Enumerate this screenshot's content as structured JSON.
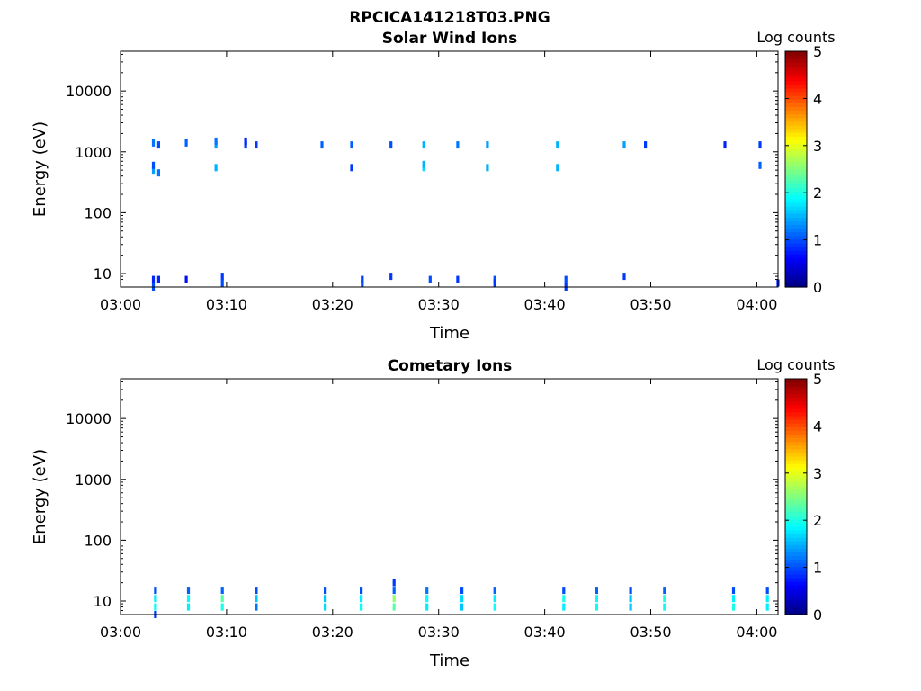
{
  "figure_title": "RPCICA141218T03.PNG",
  "chart_data": [
    {
      "type": "heatmap",
      "title": "Solar Wind Ions",
      "xlabel": "Time",
      "ylabel": "Energy (eV)",
      "x_scale": "time",
      "y_scale": "log",
      "xlim": [
        "03:00",
        "04:02"
      ],
      "ylim": [
        6,
        45000
      ],
      "x_ticks": [
        "03:00",
        "03:10",
        "03:20",
        "03:30",
        "03:40",
        "03:50",
        "04:00"
      ],
      "y_ticks": [
        10,
        100,
        1000,
        10000
      ],
      "y_tick_labels": [
        "10",
        "100",
        "1000",
        "10000"
      ],
      "colorbar": {
        "label": "Log counts",
        "range": [
          0,
          5
        ],
        "ticks": [
          "0",
          "1",
          "2",
          "3",
          "4",
          "5"
        ],
        "colormap": "jet"
      },
      "grid": false,
      "columns": [
        {
          "t": 3.1,
          "bins": [
            [
              1400,
              1.2
            ],
            [
              500,
              1.4
            ],
            [
              600,
              1.0
            ],
            [
              8,
              0.8
            ],
            [
              6,
              1.0
            ]
          ]
        },
        {
          "t": 3.6,
          "bins": [
            [
              1300,
              1.0
            ],
            [
              450,
              1.2
            ],
            [
              8,
              0.8
            ]
          ]
        },
        {
          "t": 6.2,
          "bins": [
            [
              1400,
              1.1
            ],
            [
              8,
              0.7
            ]
          ]
        },
        {
          "t": 9.0,
          "bins": [
            [
              1300,
              1.4
            ],
            [
              550,
              1.5
            ],
            [
              1500,
              1.2
            ]
          ]
        },
        {
          "t": 9.6,
          "bins": [
            [
              9,
              0.9
            ],
            [
              7,
              1.0
            ]
          ]
        },
        {
          "t": 11.8,
          "bins": [
            [
              1300,
              0.9
            ],
            [
              1500,
              0.8
            ]
          ]
        },
        {
          "t": 12.8,
          "bins": [
            [
              1300,
              0.9
            ]
          ]
        },
        {
          "t": 19.0,
          "bins": [
            [
              1300,
              1.1
            ]
          ]
        },
        {
          "t": 21.8,
          "bins": [
            [
              1300,
              1.1
            ],
            [
              550,
              0.9
            ]
          ]
        },
        {
          "t": 22.8,
          "bins": [
            [
              8,
              0.9
            ],
            [
              7,
              1.0
            ]
          ]
        },
        {
          "t": 25.5,
          "bins": [
            [
              1300,
              1.0
            ],
            [
              9,
              0.9
            ]
          ]
        },
        {
          "t": 28.6,
          "bins": [
            [
              1300,
              1.5
            ],
            [
              550,
              1.7
            ],
            [
              620,
              1.5
            ]
          ]
        },
        {
          "t": 29.2,
          "bins": [
            [
              8,
              1.0
            ]
          ]
        },
        {
          "t": 31.8,
          "bins": [
            [
              1300,
              1.2
            ],
            [
              8,
              0.9
            ]
          ]
        },
        {
          "t": 34.6,
          "bins": [
            [
              1300,
              1.4
            ],
            [
              550,
              1.5
            ]
          ]
        },
        {
          "t": 35.3,
          "bins": [
            [
              8,
              1.0
            ],
            [
              7,
              0.9
            ]
          ]
        },
        {
          "t": 41.2,
          "bins": [
            [
              1300,
              1.5
            ],
            [
              550,
              1.5
            ]
          ]
        },
        {
          "t": 42.0,
          "bins": [
            [
              8,
              1.0
            ],
            [
              6,
              0.9
            ]
          ]
        },
        {
          "t": 47.5,
          "bins": [
            [
              1300,
              1.4
            ],
            [
              9,
              0.9
            ]
          ]
        },
        {
          "t": 49.5,
          "bins": [
            [
              1300,
              0.9
            ]
          ]
        },
        {
          "t": 57.0,
          "bins": [
            [
              1300,
              0.8
            ]
          ]
        },
        {
          "t": 60.3,
          "bins": [
            [
              1300,
              0.9
            ],
            [
              600,
              1.1
            ]
          ]
        },
        {
          "t": 62.0,
          "bins": [
            [
              7,
              0.8
            ]
          ]
        }
      ]
    },
    {
      "type": "heatmap",
      "title": "Cometary Ions",
      "xlabel": "Time",
      "ylabel": "Energy (eV)",
      "x_scale": "time",
      "y_scale": "log",
      "xlim": [
        "03:00",
        "04:02"
      ],
      "ylim": [
        6,
        45000
      ],
      "x_ticks": [
        "03:00",
        "03:10",
        "03:20",
        "03:30",
        "03:40",
        "03:50",
        "04:00"
      ],
      "y_ticks": [
        10,
        100,
        1000,
        10000
      ],
      "y_tick_labels": [
        "10",
        "100",
        "1000",
        "10000"
      ],
      "colorbar": {
        "label": "Log counts",
        "range": [
          0,
          5
        ],
        "ticks": [
          "0",
          "1",
          "2",
          "3",
          "4",
          "5"
        ],
        "colormap": "jet"
      },
      "grid": false,
      "columns": [
        {
          "t": 3.3,
          "bins": [
            [
              15,
              1.0
            ],
            [
              11,
              1.8
            ],
            [
              8,
              1.9
            ],
            [
              6,
              0.9
            ]
          ]
        },
        {
          "t": 6.4,
          "bins": [
            [
              15,
              1.1
            ],
            [
              11,
              1.9
            ],
            [
              8,
              1.8
            ]
          ]
        },
        {
          "t": 9.6,
          "bins": [
            [
              15,
              1.1
            ],
            [
              11,
              2.3
            ],
            [
              8,
              2.0
            ]
          ]
        },
        {
          "t": 12.8,
          "bins": [
            [
              15,
              1.0
            ],
            [
              11,
              1.6
            ],
            [
              8,
              1.2
            ]
          ]
        },
        {
          "t": 19.3,
          "bins": [
            [
              15,
              1.0
            ],
            [
              11,
              1.6
            ],
            [
              8,
              1.7
            ]
          ]
        },
        {
          "t": 22.7,
          "bins": [
            [
              15,
              1.0
            ],
            [
              11,
              1.8
            ],
            [
              8,
              1.9
            ]
          ]
        },
        {
          "t": 25.8,
          "bins": [
            [
              15,
              1.1
            ],
            [
              11,
              2.6
            ],
            [
              8,
              2.3
            ],
            [
              20,
              0.9
            ]
          ]
        },
        {
          "t": 28.9,
          "bins": [
            [
              15,
              1.2
            ],
            [
              11,
              1.9
            ],
            [
              8,
              1.8
            ]
          ]
        },
        {
          "t": 32.2,
          "bins": [
            [
              15,
              1.0
            ],
            [
              11,
              1.7
            ],
            [
              8,
              1.6
            ]
          ]
        },
        {
          "t": 35.3,
          "bins": [
            [
              15,
              1.1
            ],
            [
              11,
              1.8
            ],
            [
              8,
              1.9
            ]
          ]
        },
        {
          "t": 41.8,
          "bins": [
            [
              15,
              1.0
            ],
            [
              11,
              2.0
            ],
            [
              8,
              1.8
            ]
          ]
        },
        {
          "t": 44.9,
          "bins": [
            [
              15,
              1.1
            ],
            [
              11,
              1.9
            ],
            [
              8,
              1.9
            ]
          ]
        },
        {
          "t": 48.1,
          "bins": [
            [
              15,
              1.0
            ],
            [
              11,
              1.6
            ],
            [
              8,
              1.6
            ]
          ]
        },
        {
          "t": 51.3,
          "bins": [
            [
              15,
              1.1
            ],
            [
              11,
              2.0
            ],
            [
              8,
              1.9
            ]
          ]
        },
        {
          "t": 57.8,
          "bins": [
            [
              15,
              1.0
            ],
            [
              11,
              1.8
            ],
            [
              8,
              2.0
            ]
          ]
        },
        {
          "t": 61.0,
          "bins": [
            [
              15,
              1.0
            ],
            [
              11,
              1.8
            ],
            [
              8,
              1.8
            ]
          ]
        }
      ]
    }
  ]
}
